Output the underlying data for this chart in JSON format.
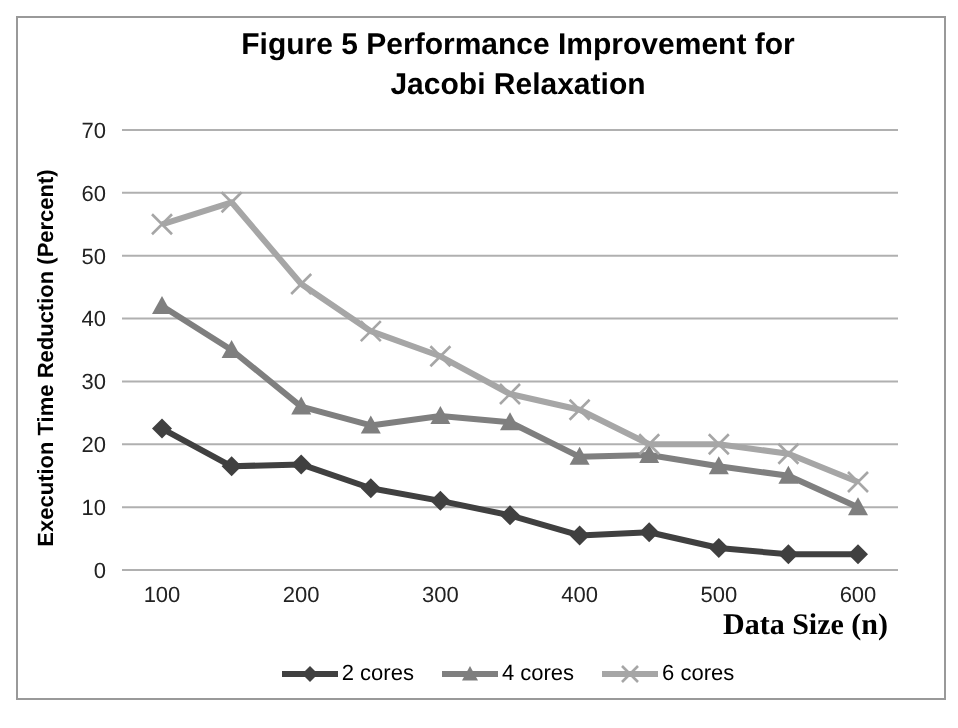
{
  "chart_data": {
    "type": "line",
    "title": "Figure 5  Performance Improvement for Jacobi Relaxation",
    "xlabel": "Data Size (n)",
    "ylabel": "Execution Time Reduction (Percent)",
    "categories": [
      "100",
      null,
      "200",
      null,
      "300",
      null,
      "400",
      null,
      "500",
      null,
      "600"
    ],
    "ylim": [
      0,
      70
    ],
    "yticks": [
      0,
      10,
      20,
      30,
      40,
      50,
      60,
      70
    ],
    "grid": "y",
    "legend": "bottom",
    "series": [
      {
        "name": "2 cores",
        "color": "#404040",
        "marker": "diamond",
        "values": [
          22.5,
          16.5,
          16.8,
          13,
          11,
          8.7,
          5.5,
          6,
          3.5,
          2.5,
          2.5
        ]
      },
      {
        "name": "4 cores",
        "color": "#7f7f7f",
        "marker": "triangle",
        "values": [
          42,
          35,
          26,
          23,
          24.5,
          23.5,
          18,
          18.3,
          16.5,
          15,
          10
        ]
      },
      {
        "name": "6 cores",
        "color": "#a6a6a6",
        "marker": "cross",
        "values": [
          55,
          58.5,
          45.5,
          38,
          34,
          28,
          25.5,
          20,
          20,
          18.5,
          14
        ]
      }
    ]
  }
}
